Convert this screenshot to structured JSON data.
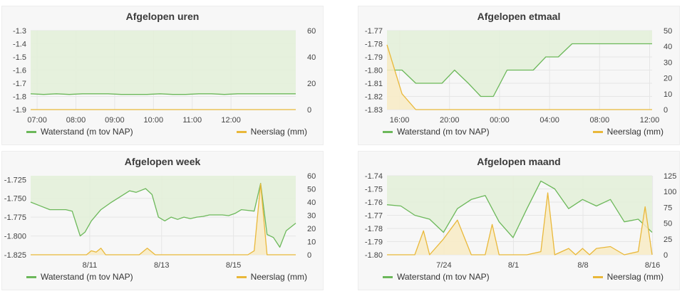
{
  "colors": {
    "waterstand": "#6cb85a",
    "waterstand_fill": "#e3efd9",
    "neerslag": "#e9b83a",
    "neerslag_fill": "#f8ebc4",
    "grid": "#e6e6e6",
    "panel_bg": "#f7f7f7"
  },
  "panels": [
    {
      "title": "Afgelopen uren",
      "legend_left": "Waterstand (m tov NAP)",
      "legend_right": "Neerslag (mm)"
    },
    {
      "title": "Afgelopen etmaal",
      "legend_left": "Waterstand (m tov NAP)",
      "legend_right": "Neerslag (mm)"
    },
    {
      "title": "Afgelopen week",
      "legend_left": "Waterstand (m tov NAP)",
      "legend_right": "Neerslag (mm)"
    },
    {
      "title": "Afgelopen maand",
      "legend_left": "Waterstand (m tov NAP)",
      "legend_right": "Neerslag (mm)"
    }
  ],
  "chart_data": [
    {
      "type": "line",
      "title": "Afgelopen uren",
      "x_range": [
        6.833,
        13.67
      ],
      "x_ticks": [
        7,
        8,
        9,
        10,
        11,
        12
      ],
      "x_tick_labels": [
        "07:00",
        "08:00",
        "09:00",
        "10:00",
        "11:00",
        "12:00"
      ],
      "y_left": {
        "range": [
          -1.9,
          -1.3
        ],
        "ticks": [
          -1.9,
          -1.8,
          -1.7,
          -1.6,
          -1.5,
          -1.4,
          -1.3
        ],
        "labels": [
          "-1.9",
          "-1.8",
          "-1.7",
          "-1.6",
          "-1.5",
          "-1.4",
          "-1.3"
        ]
      },
      "y_right": {
        "range": [
          0,
          60
        ],
        "ticks": [
          0,
          20,
          40,
          60
        ],
        "labels": [
          "0",
          "20",
          "40",
          "60"
        ]
      },
      "series": [
        {
          "name": "Waterstand (m tov NAP)",
          "axis": "left",
          "x": [
            6.833,
            7.17,
            7.5,
            7.83,
            8.17,
            8.5,
            8.83,
            9.17,
            9.5,
            9.83,
            10.17,
            10.5,
            10.83,
            11.17,
            11.5,
            11.83,
            12.17,
            12.5,
            12.83,
            13.17,
            13.67
          ],
          "y": [
            -1.78,
            -1.785,
            -1.78,
            -1.785,
            -1.78,
            -1.78,
            -1.78,
            -1.785,
            -1.785,
            -1.785,
            -1.78,
            -1.785,
            -1.785,
            -1.78,
            -1.78,
            -1.785,
            -1.78,
            -1.78,
            -1.78,
            -1.78,
            -1.78
          ]
        },
        {
          "name": "Neerslag (mm)",
          "axis": "right",
          "x": [
            6.833,
            13.67
          ],
          "y": [
            0,
            0
          ]
        }
      ]
    },
    {
      "type": "line",
      "title": "Afgelopen etmaal",
      "x_range": [
        -21,
        0.2
      ],
      "x_ticks": [
        -20,
        -16,
        -12,
        -8,
        -4,
        0
      ],
      "x_tick_labels": [
        "16:00",
        "20:00",
        "00:00",
        "04:00",
        "08:00",
        "12:00"
      ],
      "y_left": {
        "range": [
          -1.83,
          -1.77
        ],
        "ticks": [
          -1.83,
          -1.82,
          -1.81,
          -1.8,
          -1.79,
          -1.78,
          -1.77
        ],
        "labels": [
          "-1.83",
          "-1.82",
          "-1.81",
          "-1.80",
          "-1.79",
          "-1.78",
          "-1.77"
        ]
      },
      "y_right": {
        "range": [
          0,
          50
        ],
        "ticks": [
          0,
          10,
          20,
          30,
          40,
          50
        ],
        "labels": [
          "0",
          "10",
          "20",
          "30",
          "40",
          "50"
        ]
      },
      "series": [
        {
          "name": "Waterstand (m tov NAP)",
          "axis": "left",
          "x": [
            -21,
            -19.8,
            -18.7,
            -17.7,
            -16.6,
            -15.6,
            -14.5,
            -13.5,
            -12.5,
            -11.4,
            -10.4,
            -9.3,
            -8.3,
            -7.3,
            -6.2,
            -5.2,
            -4.1,
            -3.1,
            -2.1,
            -1,
            0,
            0.2
          ],
          "y": [
            -1.8,
            -1.8,
            -1.81,
            -1.81,
            -1.81,
            -1.8,
            -1.81,
            -1.82,
            -1.82,
            -1.8,
            -1.8,
            -1.8,
            -1.79,
            -1.79,
            -1.78,
            -1.78,
            -1.78,
            -1.78,
            -1.78,
            -1.78,
            -1.78,
            -1.78
          ]
        },
        {
          "name": "Neerslag (mm)",
          "axis": "right",
          "x": [
            -21,
            -19.8,
            -18.7,
            -17.7,
            0.2
          ],
          "y": [
            41,
            10,
            0,
            0,
            0
          ]
        }
      ]
    },
    {
      "type": "line",
      "title": "Afgelopen week",
      "x_range": [
        0,
        8.3
      ],
      "x_ticks": [
        1.85,
        4.1,
        6.35
      ],
      "x_tick_labels": [
        "8/11",
        "8/13",
        "8/15"
      ],
      "y_left": {
        "range": [
          -1.825,
          -1.72
        ],
        "ticks": [
          -1.825,
          -1.8,
          -1.775,
          -1.75,
          -1.725
        ],
        "labels": [
          "-1.825",
          "-1.800",
          "-1.775",
          "-1.750",
          "-1.725"
        ]
      },
      "y_right": {
        "range": [
          0,
          60
        ],
        "ticks": [
          0,
          10,
          20,
          30,
          40,
          50,
          60
        ],
        "labels": [
          "0",
          "10",
          "20",
          "30",
          "40",
          "50",
          "60"
        ]
      },
      "series": [
        {
          "name": "Waterstand (m tov NAP)",
          "axis": "left",
          "x": [
            0,
            0.3,
            0.6,
            0.9,
            1.1,
            1.3,
            1.55,
            1.7,
            1.9,
            2.2,
            2.5,
            2.8,
            3.1,
            3.3,
            3.6,
            3.8,
            4.0,
            4.2,
            4.4,
            4.6,
            4.8,
            5.0,
            5.2,
            5.4,
            5.6,
            5.8,
            6.0,
            6.2,
            6.4,
            6.6,
            6.8,
            7.0,
            7.2,
            7.4,
            7.6,
            7.8,
            8.0,
            8.3
          ],
          "y": [
            -1.755,
            -1.76,
            -1.765,
            -1.765,
            -1.765,
            -1.767,
            -1.8,
            -1.795,
            -1.78,
            -1.765,
            -1.756,
            -1.748,
            -1.74,
            -1.742,
            -1.737,
            -1.745,
            -1.775,
            -1.78,
            -1.775,
            -1.778,
            -1.775,
            -1.777,
            -1.775,
            -1.774,
            -1.772,
            -1.772,
            -1.772,
            -1.773,
            -1.77,
            -1.765,
            -1.766,
            -1.767,
            -1.73,
            -1.798,
            -1.802,
            -1.815,
            -1.793,
            -1.783
          ]
        },
        {
          "name": "Neerslag (mm)",
          "axis": "right",
          "x": [
            0,
            1.75,
            1.9,
            2.05,
            2.2,
            2.35,
            3.4,
            3.65,
            3.9,
            6.8,
            7.0,
            7.2,
            7.4,
            8.3
          ],
          "y": [
            0,
            0,
            3,
            2,
            5,
            0,
            0,
            5,
            0,
            0,
            3,
            54,
            0,
            0
          ]
        }
      ]
    },
    {
      "type": "line",
      "title": "Afgelopen maand",
      "x_range": [
        0,
        30.5
      ],
      "x_ticks": [
        6.55,
        14.55,
        22.55,
        30.55
      ],
      "x_tick_labels": [
        "7/24",
        "8/1",
        "8/8",
        "8/16"
      ],
      "y_left": {
        "range": [
          -1.8,
          -1.74
        ],
        "ticks": [
          -1.8,
          -1.79,
          -1.78,
          -1.77,
          -1.76,
          -1.75,
          -1.74
        ],
        "labels": [
          "-1.80",
          "-1.79",
          "-1.78",
          "-1.77",
          "-1.76",
          "-1.75",
          "-1.74"
        ]
      },
      "y_right": {
        "range": [
          0,
          125
        ],
        "ticks": [
          0,
          25,
          50,
          75,
          100,
          125
        ],
        "labels": [
          "0",
          "25",
          "50",
          "75",
          "100",
          "125"
        ]
      },
      "series": [
        {
          "name": "Waterstand (m tov NAP)",
          "axis": "left",
          "x": [
            0,
            1.6,
            3.2,
            4.9,
            6.5,
            8.1,
            9.7,
            11.3,
            12.9,
            14.5,
            16.1,
            17.7,
            19.3,
            20.9,
            22.5,
            24.1,
            25.7,
            27.3,
            28.9,
            30.5
          ],
          "y": [
            -1.762,
            -1.763,
            -1.77,
            -1.773,
            -1.783,
            -1.765,
            -1.758,
            -1.755,
            -1.775,
            -1.787,
            -1.765,
            -1.744,
            -1.75,
            -1.765,
            -1.758,
            -1.763,
            -1.758,
            -1.775,
            -1.773,
            -1.783
          ]
        },
        {
          "name": "Neerslag (mm)",
          "axis": "right",
          "x": [
            0,
            1.6,
            3.2,
            4.2,
            4.9,
            6.5,
            8.1,
            9.7,
            11.3,
            12.1,
            12.9,
            14.5,
            16.1,
            17.7,
            18.5,
            19.3,
            20.9,
            21.7,
            22.5,
            23.3,
            24.1,
            25.7,
            27.3,
            28.9,
            29.7,
            30.5
          ],
          "y": [
            0,
            0,
            0,
            38,
            0,
            25,
            55,
            0,
            0,
            48,
            0,
            0,
            0,
            5,
            98,
            0,
            10,
            0,
            10,
            0,
            10,
            13,
            0,
            5,
            76,
            0
          ]
        }
      ]
    }
  ]
}
